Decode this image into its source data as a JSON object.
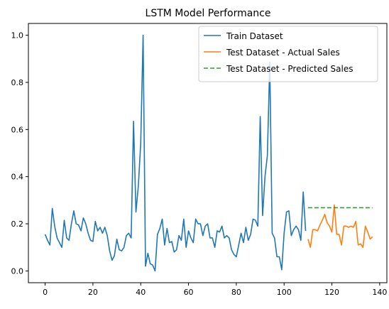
{
  "chart_data": {
    "type": "line",
    "title": "LSTM Model Performance",
    "xlabel": "",
    "ylabel": "",
    "xlim": [
      -7,
      143
    ],
    "ylim": [
      -0.05,
      1.05
    ],
    "xticks": [
      0,
      20,
      40,
      60,
      80,
      100,
      120,
      140
    ],
    "yticks": [
      0.0,
      0.2,
      0.4,
      0.6,
      0.8,
      1.0
    ],
    "grid": false,
    "legend_position": "top-right",
    "series": [
      {
        "name": "Train Dataset",
        "color": "#1f77b4",
        "style": "solid",
        "x": [
          0,
          1,
          2,
          3,
          4,
          5,
          6,
          7,
          8,
          9,
          10,
          11,
          12,
          13,
          14,
          15,
          16,
          17,
          18,
          19,
          20,
          21,
          22,
          23,
          24,
          25,
          26,
          27,
          28,
          29,
          30,
          31,
          32,
          33,
          34,
          35,
          36,
          37,
          38,
          39,
          40,
          41,
          42,
          43,
          44,
          45,
          46,
          47,
          48,
          49,
          50,
          51,
          52,
          53,
          54,
          55,
          56,
          57,
          58,
          59,
          60,
          61,
          62,
          63,
          64,
          65,
          66,
          67,
          68,
          69,
          70,
          71,
          72,
          73,
          74,
          75,
          76,
          77,
          78,
          79,
          80,
          81,
          82,
          83,
          84,
          85,
          86,
          87,
          88,
          89,
          90,
          91,
          92,
          93,
          94,
          95,
          96,
          97,
          98,
          99,
          100,
          101,
          102,
          103,
          104,
          105,
          106,
          107,
          108,
          109
        ],
        "y": [
          0.155,
          0.13,
          0.11,
          0.265,
          0.19,
          0.14,
          0.12,
          0.1,
          0.215,
          0.14,
          0.13,
          0.2,
          0.255,
          0.2,
          0.195,
          0.17,
          0.225,
          0.2,
          0.16,
          0.13,
          0.125,
          0.21,
          0.17,
          0.185,
          0.16,
          0.185,
          0.15,
          0.085,
          0.045,
          0.065,
          0.135,
          0.09,
          0.085,
          0.1,
          0.15,
          0.16,
          0.14,
          0.635,
          0.25,
          0.36,
          0.54,
          1.0,
          0.02,
          0.075,
          0.03,
          0.025,
          0.0,
          0.155,
          0.18,
          0.22,
          0.11,
          0.18,
          0.12,
          0.125,
          0.08,
          0.09,
          0.15,
          0.13,
          0.22,
          0.1,
          0.17,
          0.14,
          0.12,
          0.22,
          0.2,
          0.2,
          0.15,
          0.19,
          0.2,
          0.14,
          0.14,
          0.1,
          0.17,
          0.165,
          0.19,
          0.14,
          0.15,
          0.14,
          0.09,
          0.07,
          0.06,
          0.11,
          0.16,
          0.12,
          0.185,
          0.13,
          0.155,
          0.22,
          0.215,
          0.19,
          0.655,
          0.235,
          0.4,
          0.49,
          0.885,
          0.16,
          0.14,
          0.06,
          0.06,
          0.005,
          0.16,
          0.25,
          0.255,
          0.15,
          0.175,
          0.19,
          0.175,
          0.13,
          0.335,
          0.17
        ]
      },
      {
        "name": "Test Dataset - Actual Sales",
        "color": "#ff7f0e",
        "style": "solid",
        "x": [
          110,
          111,
          112,
          113,
          114,
          115,
          116,
          117,
          118,
          119,
          120,
          121,
          122,
          123,
          124,
          125,
          126,
          127,
          128,
          129,
          130,
          131,
          132,
          133,
          134,
          135,
          136,
          137
        ],
        "y": [
          0.135,
          0.1,
          0.175,
          0.175,
          0.17,
          0.195,
          0.215,
          0.24,
          0.205,
          0.19,
          0.165,
          0.28,
          0.155,
          0.155,
          0.11,
          0.19,
          0.19,
          0.185,
          0.19,
          0.185,
          0.21,
          0.11,
          0.115,
          0.1,
          0.19,
          0.165,
          0.135,
          0.145
        ]
      },
      {
        "name": "Test Dataset - Predicted Sales",
        "color": "#2ca02c",
        "style": "dashed",
        "x": [
          110,
          137
        ],
        "y": [
          0.268,
          0.268
        ]
      }
    ]
  }
}
